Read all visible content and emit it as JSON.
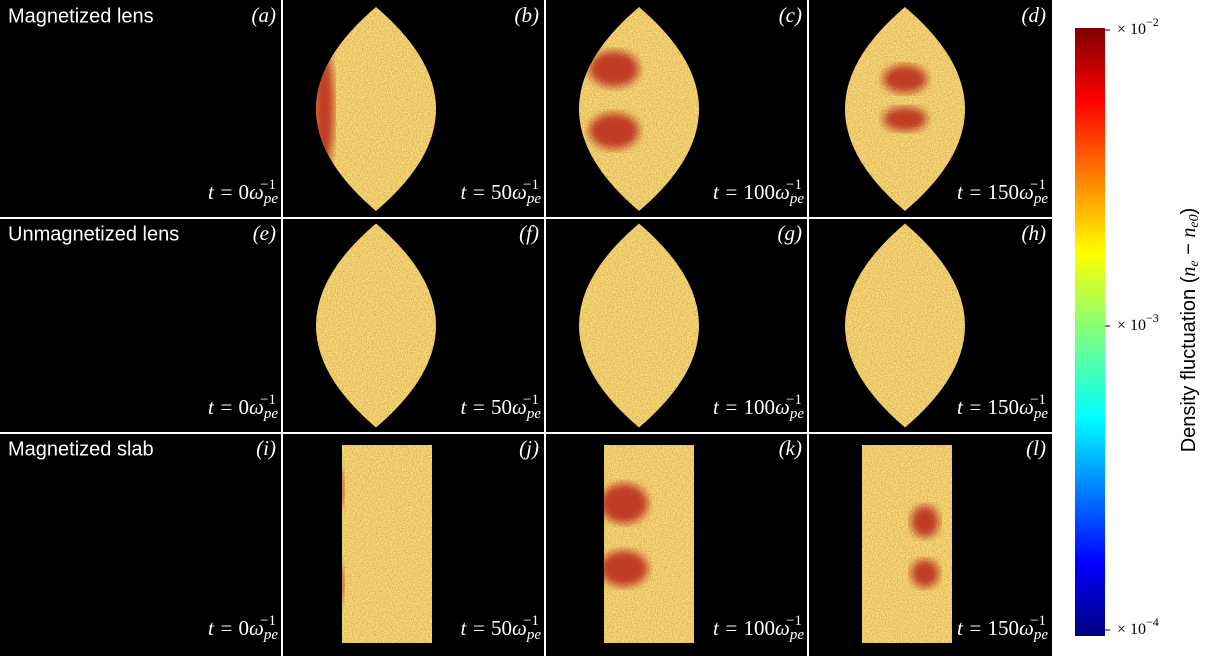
{
  "rows": [
    {
      "title": "Magnetized lens",
      "panels": [
        "(a)",
        "(b)",
        "(c)",
        "(d)"
      ]
    },
    {
      "title": "Unmagnetized lens",
      "panels": [
        "(e)",
        "(f)",
        "(g)",
        "(h)"
      ]
    },
    {
      "title": "Magnetized slab",
      "panels": [
        "(i)",
        "(j)",
        "(k)",
        "(l)"
      ]
    }
  ],
  "time_label": {
    "prefix": "t = ",
    "times": [
      0,
      50,
      100,
      150
    ],
    "symbol": "ω",
    "subscript": "pe",
    "superscript": "−1"
  },
  "colorbar": {
    "label_parts": [
      "Density fluctuation (",
      "n",
      "e",
      " − ",
      "n",
      "e0",
      ")"
    ],
    "ticks": [
      {
        "base": "× 10",
        "exponent": "−2"
      },
      {
        "base": "× 10",
        "exponent": "−3"
      },
      {
        "base": "× 10",
        "exponent": "−4"
      }
    ]
  }
}
